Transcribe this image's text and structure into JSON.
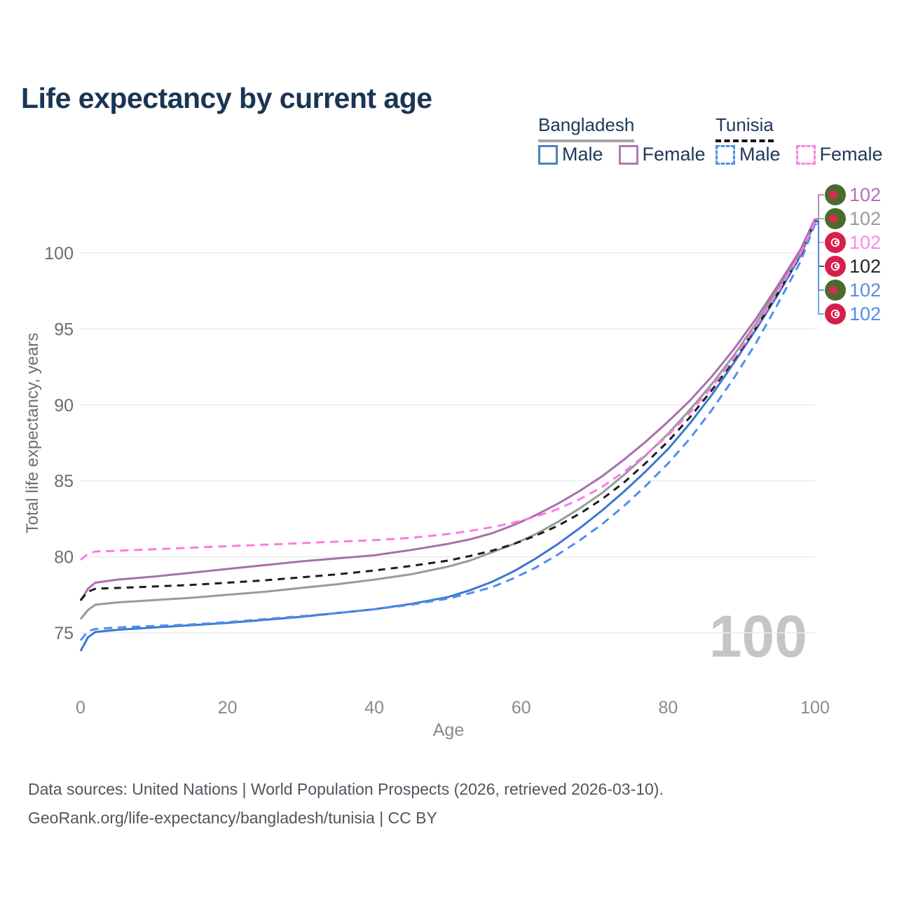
{
  "title": "Life expectancy by current age",
  "legend": {
    "groups": [
      {
        "name": "Bangladesh",
        "underline": "solid",
        "underline_color": "#a5a5a5",
        "items": [
          {
            "label": "Male",
            "color": "#5180c0",
            "dash": false
          },
          {
            "label": "Female",
            "color": "#b279ae",
            "dash": false
          }
        ]
      },
      {
        "name": "Tunisia",
        "underline": "dashed",
        "underline_color": "#121212",
        "items": [
          {
            "label": "Male",
            "color": "#4f8ef2",
            "dash": true
          },
          {
            "label": "Female",
            "color": "#fb84e4",
            "dash": true
          }
        ]
      }
    ]
  },
  "chart_data": {
    "type": "line",
    "title": "Life expectancy by current age",
    "xlabel": "Age",
    "ylabel": "Total life expectancy, years",
    "xlim": [
      0,
      100
    ],
    "ylim": [
      73,
      103
    ],
    "xticks": [
      0,
      20,
      40,
      60,
      80,
      100
    ],
    "yticks": [
      75,
      80,
      85,
      90,
      95,
      100
    ],
    "grid": "horizontal",
    "legend_position": "top-right",
    "watermark": "100",
    "x": [
      0,
      1,
      2,
      5,
      10,
      15,
      20,
      25,
      30,
      35,
      40,
      45,
      50,
      53,
      56,
      59,
      62,
      65,
      68,
      71,
      74,
      77,
      80,
      83,
      86,
      89,
      92,
      95,
      98,
      100
    ],
    "series": [
      {
        "name": "Bangladesh Male",
        "country": "Bangladesh",
        "sex": "Male",
        "color": "#3d77cf",
        "dash": "solid",
        "values": [
          73.8,
          74.7,
          75.05,
          75.2,
          75.35,
          75.5,
          75.65,
          75.85,
          76.05,
          76.3,
          76.55,
          76.9,
          77.35,
          77.8,
          78.35,
          79.05,
          79.9,
          80.85,
          81.9,
          83.05,
          84.3,
          85.65,
          87.1,
          88.8,
          90.7,
          92.8,
          95.0,
          97.3,
          99.8,
          102.05
        ]
      },
      {
        "name": "Bangladesh Both sexes",
        "country": "Bangladesh",
        "sex": "Both",
        "color": "#9a9a9a",
        "dash": "solid",
        "values": [
          75.9,
          76.5,
          76.85,
          77.0,
          77.15,
          77.3,
          77.5,
          77.7,
          77.95,
          78.2,
          78.5,
          78.85,
          79.35,
          79.75,
          80.3,
          80.85,
          81.5,
          82.3,
          83.2,
          84.2,
          85.4,
          86.7,
          88.1,
          89.7,
          91.4,
          93.3,
          95.4,
          97.7,
          100.0,
          102.2
        ]
      },
      {
        "name": "Bangladesh Female",
        "country": "Bangladesh",
        "sex": "Female",
        "color": "#a86fad",
        "dash": "solid",
        "values": [
          77.1,
          77.9,
          78.3,
          78.5,
          78.7,
          78.95,
          79.2,
          79.45,
          79.7,
          79.9,
          80.1,
          80.45,
          80.85,
          81.15,
          81.55,
          82.1,
          82.75,
          83.5,
          84.35,
          85.3,
          86.4,
          87.6,
          88.9,
          90.3,
          91.9,
          93.7,
          95.7,
          97.9,
          100.2,
          102.25
        ]
      },
      {
        "name": "Tunisia Both sexes",
        "country": "Tunisia",
        "sex": "Both",
        "color": "#1c1c1c",
        "dash": "dashed",
        "values": [
          77.15,
          77.7,
          77.9,
          77.95,
          78.05,
          78.15,
          78.3,
          78.45,
          78.65,
          78.85,
          79.1,
          79.4,
          79.75,
          80.05,
          80.4,
          80.85,
          81.4,
          82.05,
          82.85,
          83.8,
          84.9,
          86.2,
          87.6,
          89.2,
          91.0,
          93.0,
          95.1,
          97.4,
          99.8,
          102.1
        ]
      },
      {
        "name": "Tunisia Male",
        "country": "Tunisia",
        "sex": "Male",
        "color": "#4f8ef2",
        "dash": "dashed",
        "values": [
          74.5,
          75.1,
          75.25,
          75.35,
          75.45,
          75.55,
          75.7,
          75.9,
          76.1,
          76.3,
          76.55,
          76.85,
          77.25,
          77.6,
          78.0,
          78.6,
          79.3,
          80.15,
          81.1,
          82.15,
          83.35,
          84.7,
          86.15,
          87.8,
          89.7,
          91.8,
          94.1,
          96.7,
          99.4,
          101.9
        ]
      },
      {
        "name": "Tunisia Female",
        "country": "Tunisia",
        "sex": "Female",
        "color": "#fb7ce0",
        "dash": "dashed",
        "values": [
          79.8,
          80.2,
          80.35,
          80.4,
          80.5,
          80.6,
          80.7,
          80.8,
          80.9,
          81.0,
          81.1,
          81.25,
          81.5,
          81.7,
          81.95,
          82.25,
          82.65,
          83.15,
          83.8,
          84.6,
          85.6,
          86.75,
          88.0,
          89.5,
          91.2,
          93.1,
          95.2,
          97.5,
          99.9,
          102.1
        ]
      }
    ],
    "end_labels": [
      {
        "value": "102",
        "flag": "bd",
        "text_color": "#b171b5",
        "series": "Bangladesh Female"
      },
      {
        "value": "102",
        "flag": "bd",
        "text_color": "#9a9a9a",
        "series": "Bangladesh Both sexes"
      },
      {
        "value": "102",
        "flag": "tn",
        "text_color": "#f98ae5",
        "series": "Tunisia Female"
      },
      {
        "value": "102",
        "flag": "tn",
        "text_color": "#252525",
        "series": "Tunisia Both sexes"
      },
      {
        "value": "102",
        "flag": "bd",
        "text_color": "#5b8ed6",
        "series": "Bangladesh Male"
      },
      {
        "value": "102",
        "flag": "tn",
        "text_color": "#4f8ef2",
        "series": "Tunisia Male"
      }
    ],
    "flag_colors": {
      "bd_green": "#4a6b2c",
      "bd_red": "#d82c4e",
      "tn_red": "#d6204b",
      "tn_white": "#ffffff"
    }
  },
  "footer": {
    "line1": "Data sources: United Nations | World Population Prospects (2026, retrieved 2026-03-10).",
    "line2": "GeoRank.org/life-expectancy/bangladesh/tunisia | CC BY"
  }
}
